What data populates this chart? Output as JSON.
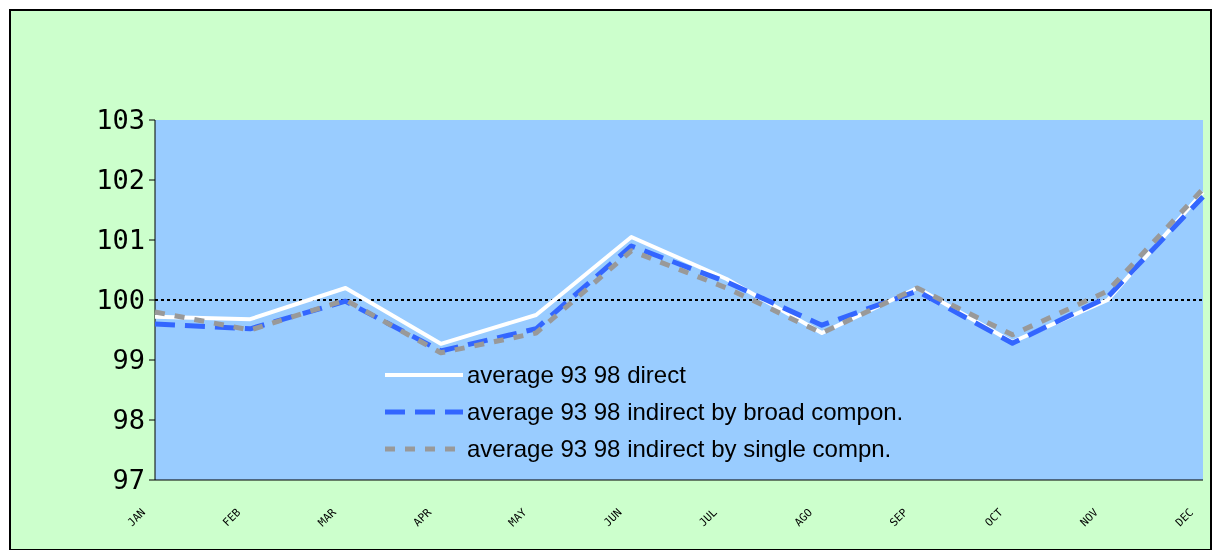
{
  "chart_data": {
    "type": "line",
    "categories": [
      "JAN",
      "FEB",
      "MAR",
      "APR",
      "MAY",
      "JUN",
      "JUL",
      "AGO",
      "SEP",
      "OCT",
      "NOV",
      "DEC"
    ],
    "series": [
      {
        "name": "average 93 98 direct",
        "color": "#ffffff",
        "line_style": "solid",
        "values": [
          99.72,
          99.68,
          100.2,
          99.27,
          99.75,
          101.05,
          100.35,
          99.45,
          100.2,
          99.3,
          100.0,
          101.8
        ]
      },
      {
        "name": "average 93 98 indirect by broad compon.",
        "color": "#3366ff",
        "line_style": "dashed",
        "values": [
          99.6,
          99.52,
          99.98,
          99.15,
          99.52,
          100.9,
          100.3,
          99.58,
          100.15,
          99.28,
          100.05,
          101.72
        ]
      },
      {
        "name": "average 93 98 indirect by single compn.",
        "color": "#999999",
        "line_style": "dotted",
        "values": [
          99.8,
          99.5,
          100.0,
          99.12,
          99.45,
          100.82,
          100.2,
          99.45,
          100.2,
          99.42,
          100.15,
          101.85
        ]
      }
    ],
    "ylim": [
      97,
      103
    ],
    "yticks": [
      97,
      98,
      99,
      100,
      101,
      102,
      103
    ],
    "grid": false,
    "legend": "bottom",
    "ref_lines": [
      {
        "axis": "y",
        "value": 100,
        "color": "#000000",
        "line_style": "dotted"
      }
    ]
  }
}
